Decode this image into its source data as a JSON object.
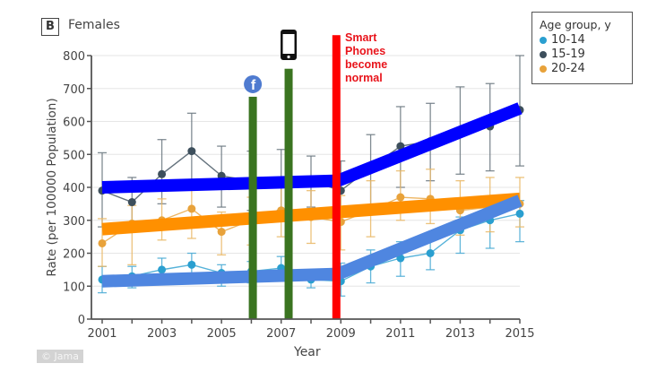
{
  "panel": {
    "label": "B",
    "title": "Females"
  },
  "annotation": {
    "lines": [
      "Smart",
      "Phones",
      "become",
      "normal"
    ],
    "color": "#e8141b"
  },
  "copyright": "© Jama",
  "markers": [
    {
      "name": "facebook",
      "icon": "facebook-icon",
      "year": 2006.05,
      "top_value": 675,
      "color": "#3a7420"
    },
    {
      "name": "phone",
      "icon": "smartphone-icon",
      "year": 2007.25,
      "top_value": 760,
      "color": "#3a7420"
    },
    {
      "name": "smart-phones-normal",
      "icon": "",
      "year": 2008.85,
      "top_value": 862,
      "color": "#ff0000"
    }
  ],
  "chart_data": {
    "type": "line",
    "title": "Females",
    "xlabel": "Year",
    "ylabel": "Rate (per 100000 Population)",
    "xlim": [
      2001,
      2015
    ],
    "ylim": [
      0,
      800
    ],
    "xticks": [
      2001,
      2003,
      2005,
      2007,
      2009,
      2011,
      2013,
      2015
    ],
    "yticks": [
      0,
      100,
      200,
      300,
      400,
      500,
      600,
      700,
      800
    ],
    "grid": true,
    "legend": {
      "title": "Age group, y",
      "placement": "top-right"
    },
    "x": [
      2001,
      2002,
      2003,
      2004,
      2005,
      2006,
      2007,
      2008,
      2009,
      2010,
      2011,
      2012,
      2013,
      2014,
      2015
    ],
    "series": [
      {
        "name": "10-14",
        "color": "#2a9fd0",
        "values": [
          120,
          130,
          150,
          165,
          140,
          145,
          155,
          120,
          115,
          160,
          185,
          200,
          270,
          300,
          320
        ],
        "err_low": [
          80,
          95,
          115,
          120,
          100,
          110,
          115,
          95,
          70,
          110,
          130,
          150,
          200,
          215,
          235
        ],
        "err_high": [
          160,
          160,
          185,
          200,
          165,
          175,
          190,
          150,
          170,
          210,
          235,
          250,
          310,
          340,
          360
        ]
      },
      {
        "name": "15-19",
        "color": "#3d4f5c",
        "values": [
          390,
          355,
          440,
          510,
          435,
          420,
          415,
          420,
          390,
          460,
          525,
          540,
          570,
          585,
          635
        ],
        "err_low": [
          280,
          290,
          350,
          400,
          340,
          330,
          330,
          340,
          300,
          340,
          400,
          420,
          440,
          450,
          465
        ],
        "err_high": [
          505,
          430,
          545,
          625,
          525,
          510,
          515,
          495,
          480,
          560,
          645,
          655,
          705,
          715,
          800
        ]
      },
      {
        "name": "20-24",
        "color": "#e8a23a",
        "values": [
          230,
          290,
          300,
          335,
          265,
          300,
          330,
          310,
          295,
          330,
          370,
          365,
          330,
          340,
          350
        ],
        "err_low": [
          160,
          165,
          240,
          245,
          195,
          225,
          250,
          230,
          210,
          250,
          300,
          290,
          255,
          265,
          280
        ],
        "err_high": [
          305,
          345,
          365,
          415,
          325,
          370,
          420,
          390,
          375,
          420,
          450,
          455,
          420,
          430,
          430
        ]
      }
    ],
    "trend_lines": [
      {
        "name": "15-19 trend",
        "color": "#0000ff",
        "points": [
          [
            2001,
            400
          ],
          [
            2008.9,
            420
          ],
          [
            2015,
            640
          ]
        ]
      },
      {
        "name": "20-24 trend",
        "color": "#ff9000",
        "points": [
          [
            2001,
            273
          ],
          [
            2015,
            365
          ]
        ]
      },
      {
        "name": "10-14 trend",
        "color": "#4f86e0",
        "points": [
          [
            2001,
            115
          ],
          [
            2008.9,
            137
          ],
          [
            2015,
            360
          ]
        ]
      }
    ]
  }
}
